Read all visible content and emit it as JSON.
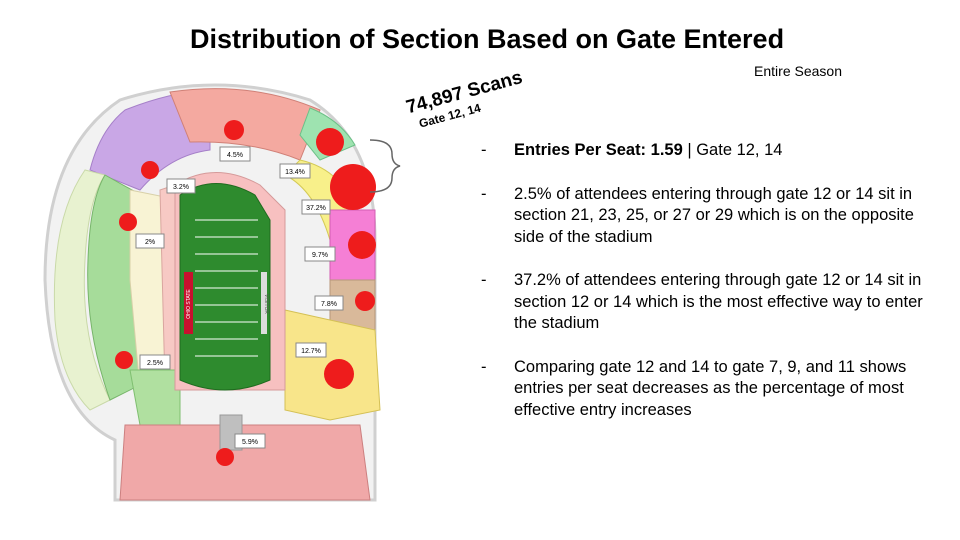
{
  "header": {
    "title": "Distribution of Section Based on Gate Entered",
    "subtitle": "Entire Season"
  },
  "scan_label": {
    "count": "74,897 Scans",
    "gates": "Gate 12, 14"
  },
  "bullets": [
    {
      "dash": "-",
      "bold": "Entries Per Seat: 1.59",
      "text": " | Gate 12, 14"
    },
    {
      "dash": "-",
      "bold": "",
      "text": "2.5% of attendees entering through gate 12 or 14 sit in section 21, 23, 25, or 27 or 29 which is on the opposite side of the stadium"
    },
    {
      "dash": "-",
      "bold": "",
      "text": "37.2% of attendees entering through gate 12 or 14 sit in section 12 or 14 which is the most effective way to enter the stadium"
    },
    {
      "dash": "-",
      "bold": "",
      "text": "Comparing gate 12 and 14 to gate 7, 9, and 11 shows entries per seat decreases as the percentage of most effective entry increases"
    }
  ],
  "stadium": {
    "field_end_left": "OHIO STATE",
    "field_end_right": "VISITOR",
    "section_labels": [
      "4.5%",
      "13.4%",
      "3.2%",
      "37.2%",
      "2%",
      "9.7%",
      "7.8%",
      "12.7%",
      "2.5%",
      "5.9%"
    ],
    "colors": {
      "field": "#2e8b2e",
      "marker": "#ee1c1c",
      "label_box": "#ffffff"
    }
  }
}
